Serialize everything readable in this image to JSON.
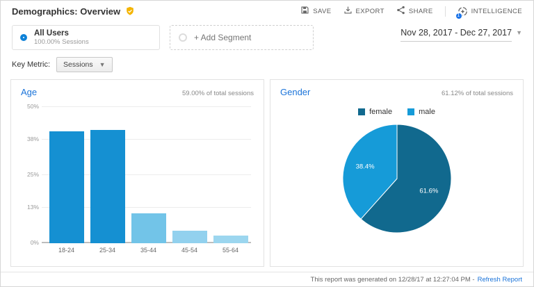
{
  "header": {
    "title": "Demographics: Overview"
  },
  "toolbar": {
    "save": "SAVE",
    "export": "EXPORT",
    "share": "SHARE",
    "intelligence": "INTELLIGENCE",
    "intelligence_badge": "1"
  },
  "segments": {
    "all_users": {
      "title": "All Users",
      "subtitle": "100.00% Sessions"
    },
    "add_segment": "+ Add Segment",
    "date_range": "Nov 28, 2017 - Dec 27, 2017"
  },
  "key_metric": {
    "label": "Key Metric:",
    "value": "Sessions"
  },
  "panels": {
    "age": {
      "title": "Age",
      "total": "59.00% of total sessions"
    },
    "gender": {
      "title": "Gender",
      "total": "61.12% of total sessions"
    }
  },
  "footer": {
    "generated": "This report was generated on 12/28/17 at 12:27:04 PM -",
    "refresh": "Refresh Report"
  },
  "icons": {
    "verified-badge-icon": "gold-shield-check",
    "save-icon": "floppy-disk",
    "export-icon": "download-arrow",
    "share-icon": "share-nodes",
    "intelligence-icon": "insights-circle",
    "dropdown-caret-icon": "▾",
    "all-users-segment-icon": "blue-donut-ring",
    "add-segment-icon": "gray-circle-outline"
  },
  "colors": {
    "accent_blue": "#1a73d9",
    "segment_ring": "#0e82d8",
    "badge_gold": "#f4b400"
  },
  "chart_data": [
    {
      "type": "bar",
      "title": "Age",
      "categories": [
        "18-24",
        "25-34",
        "35-44",
        "45-54",
        "55-64"
      ],
      "values": [
        41.0,
        41.5,
        11.0,
        4.5,
        2.8
      ],
      "unit": "percent_of_sessions",
      "xlabel": "",
      "ylabel": "",
      "ylim": [
        0,
        50
      ],
      "yticks": [
        "0%",
        "13%",
        "25%",
        "38%",
        "50%"
      ],
      "ytick_values": [
        0,
        13,
        25,
        38,
        50
      ],
      "bar_colors": [
        "#1590d2",
        "#1590d2",
        "#72c4e8",
        "#92d1ee",
        "#9cd6ef"
      ],
      "grid": true,
      "legend_position": "none"
    },
    {
      "type": "pie",
      "title": "Gender",
      "slices": [
        {
          "label": "female",
          "value": 61.6,
          "display": "61.6%",
          "color": "#11698e"
        },
        {
          "label": "male",
          "value": 38.4,
          "display": "38.4%",
          "color": "#169bd8"
        }
      ],
      "legend_position": "top"
    }
  ]
}
